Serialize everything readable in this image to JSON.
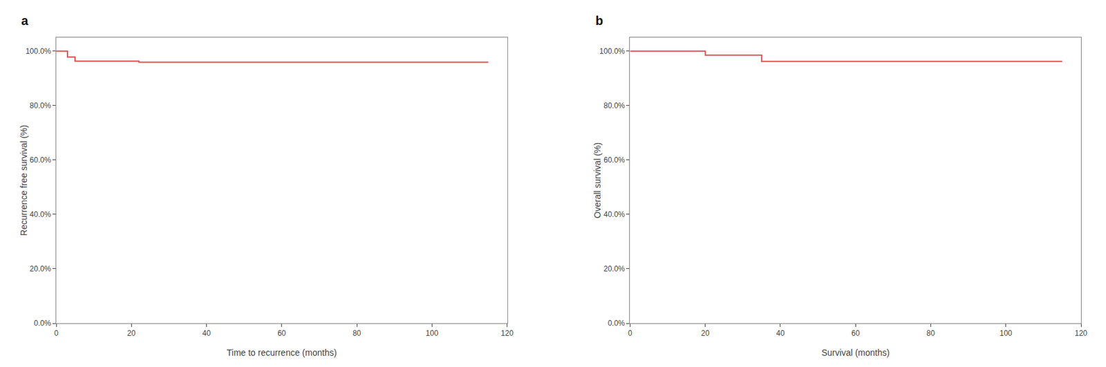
{
  "chart_data": [
    {
      "type": "step",
      "title": "a",
      "xlabel": "Time to recurrence (months)",
      "ylabel": "Recurrence free survival (%)",
      "x": [
        0,
        3,
        5,
        22,
        115
      ],
      "values": [
        100,
        97.8,
        96.3,
        95.9,
        95.9
      ],
      "color": "#e05050",
      "xlim": [
        0,
        120
      ],
      "xticks": [
        0,
        20,
        40,
        60,
        80,
        100,
        120
      ],
      "ylim": [
        0,
        105
      ],
      "yticks": [
        {
          "value": 0,
          "label": "0.0%"
        },
        {
          "value": 20,
          "label": "20.0%"
        },
        {
          "value": 40,
          "label": "40.0%"
        },
        {
          "value": 60,
          "label": "60.0%"
        },
        {
          "value": 80,
          "label": "80.0%"
        },
        {
          "value": 100,
          "label": "100.0%"
        }
      ],
      "grid": false
    },
    {
      "type": "step",
      "title": "b",
      "xlabel": "Survival (months)",
      "ylabel": "Overall survival (%)",
      "x": [
        0,
        20,
        35,
        115
      ],
      "values": [
        100,
        98.5,
        96.2,
        96.2
      ],
      "color": "#e05050",
      "xlim": [
        0,
        120
      ],
      "xticks": [
        0,
        20,
        40,
        60,
        80,
        100,
        120
      ],
      "ylim": [
        0,
        105
      ],
      "yticks": [
        {
          "value": 0,
          "label": "0.0%"
        },
        {
          "value": 20,
          "label": "20.0%"
        },
        {
          "value": 40,
          "label": "40.0%"
        },
        {
          "value": 60,
          "label": "60.0%"
        },
        {
          "value": 80,
          "label": "80.0%"
        },
        {
          "value": 100,
          "label": "100.0%"
        }
      ],
      "grid": false
    }
  ]
}
